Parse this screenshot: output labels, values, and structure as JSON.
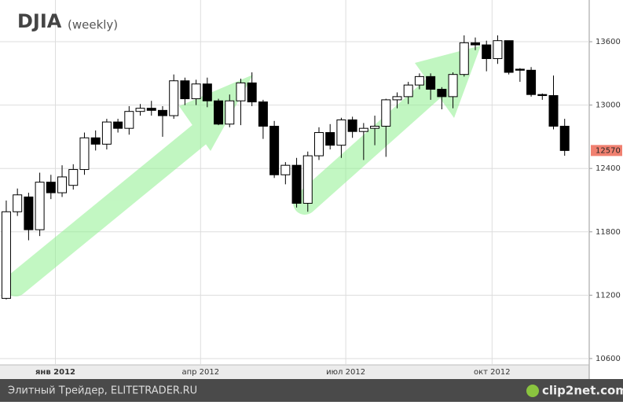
{
  "chart_data": {
    "type": "candlestick",
    "title": "DJIA",
    "subtitle": "(weekly)",
    "open": [
      11170,
      11990,
      12130,
      11820,
      12270,
      12170,
      12240,
      12390,
      12690,
      12630,
      12840,
      12780,
      12940,
      12970,
      12950,
      12900,
      13230,
      13060,
      13200,
      13040,
      12820,
      13040,
      13210,
      13030,
      12800,
      12340,
      12430,
      12070,
      12520,
      12740,
      12620,
      12860,
      12750,
      12780,
      12800,
      13050,
      13080,
      13190,
      13270,
      13150,
      13080,
      13290,
      13590,
      13570,
      13440,
      13610,
      13340,
      13330,
      13100,
      13090,
      12800
    ],
    "high": [
      12096,
      12210,
      12170,
      12360,
      12340,
      12430,
      12440,
      12740,
      12760,
      12870,
      12870,
      12990,
      13010,
      13040,
      12990,
      13290,
      13260,
      13240,
      13260,
      13060,
      13100,
      13250,
      13310,
      13050,
      12850,
      12460,
      12500,
      12560,
      12790,
      12820,
      12880,
      12890,
      12830,
      12900,
      13060,
      13120,
      13220,
      13300,
      13300,
      13170,
      13310,
      13660,
      13640,
      13610,
      13660,
      13610,
      13350,
      13360,
      13110,
      13280,
      12870
    ],
    "low": [
      11160,
      11950,
      11720,
      11760,
      12110,
      12130,
      12200,
      12340,
      12570,
      12580,
      12740,
      12720,
      12900,
      12900,
      12700,
      12870,
      13000,
      13000,
      12980,
      12810,
      12790,
      12810,
      12990,
      12680,
      12310,
      12250,
      12030,
      11990,
      12480,
      12580,
      12500,
      12690,
      12480,
      12620,
      12510,
      12970,
      13010,
      13150,
      13050,
      12960,
      12970,
      13270,
      13520,
      13320,
      13390,
      13290,
      13220,
      13080,
      13050,
      12770,
      12520
    ],
    "close": [
      11990,
      12150,
      11820,
      12270,
      12170,
      12320,
      12390,
      12690,
      12630,
      12840,
      12780,
      12940,
      12970,
      12950,
      12900,
      13230,
      13060,
      13200,
      13040,
      12820,
      13040,
      13210,
      13030,
      12800,
      12340,
      12430,
      12070,
      12520,
      12740,
      12620,
      12860,
      12750,
      12780,
      12800,
      13050,
      13080,
      13190,
      13270,
      13150,
      13080,
      13290,
      13590,
      13570,
      13440,
      13610,
      13310,
      13330,
      13100,
      13090,
      12800,
      12570
    ],
    "up_color": "#ffffff",
    "down_color": "#000000",
    "last_value": 12570,
    "last_color": "#f08070",
    "xlim": [
      -0.56,
      52.2
    ],
    "xticks": [
      {
        "value": 4.4,
        "label": "янв 2012"
      },
      {
        "value": 17.4,
        "label": "апр 2012"
      },
      {
        "value": 30.4,
        "label": "июл 2012"
      },
      {
        "value": 43.5,
        "label": "окт 2012"
      }
    ],
    "ylim": [
      10540,
      13995
    ],
    "yticks": [
      10600,
      11200,
      11800,
      12400,
      13000,
      13600
    ],
    "grid": true
  },
  "footer": {
    "text": "Элитный Трейдер, ELITETRADER.RU",
    "logo": "clip2net.com"
  }
}
